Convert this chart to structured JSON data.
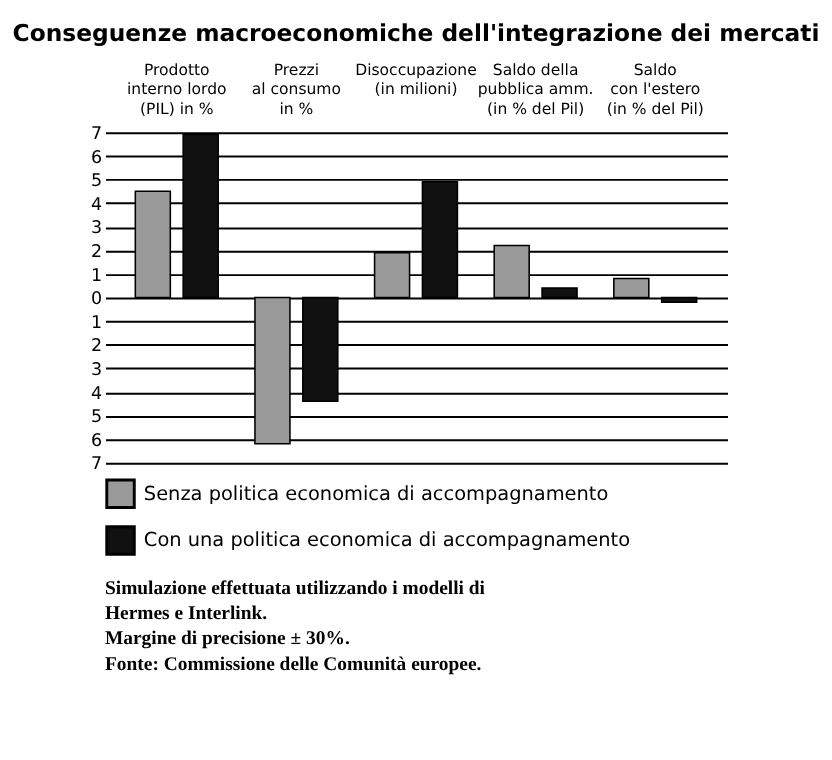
{
  "chart_data": {
    "type": "bar",
    "title": "Conseguenze macroeconomiche dell'integrazione dei mercati",
    "categories": [
      "Prodotto\ninterno lordo\n(PIL) in %",
      "Prezzi\nal consumo\nin %",
      "Disoccupazione\n(in milioni)",
      "Saldo della\npubblica amm.\n(in % del Pil)",
      "Saldo\ncon l'estero\n(in % del Pil)"
    ],
    "series": [
      {
        "name": "Senza politica economica di accompagnamento",
        "color": "#9a9a9a",
        "values": [
          4.5,
          -6.2,
          1.9,
          2.2,
          0.8
        ]
      },
      {
        "name": "Con una politica economica di accompagnamento",
        "color": "#111111",
        "values": [
          6.9,
          -4.4,
          4.9,
          0.4,
          -0.2
        ]
      }
    ],
    "ylim": [
      -7,
      7
    ],
    "yticks": [
      {
        "value": -7,
        "label": "7"
      },
      {
        "value": -6,
        "label": "6"
      },
      {
        "value": -5,
        "label": "5"
      },
      {
        "value": -4,
        "label": "4"
      },
      {
        "value": -3,
        "label": "3"
      },
      {
        "value": -2,
        "label": "2"
      },
      {
        "value": -1,
        "label": "1"
      },
      0,
      1,
      2,
      3,
      4,
      5,
      6,
      7
    ],
    "grid": "y",
    "legend": "bottom",
    "annotations": [
      "Simulazione effettuata utilizzando i modelli di\nHermes e Interlink.",
      "Margine di precisione ± 30%.",
      "Fonte: Commissione delle Comunità europee."
    ]
  }
}
